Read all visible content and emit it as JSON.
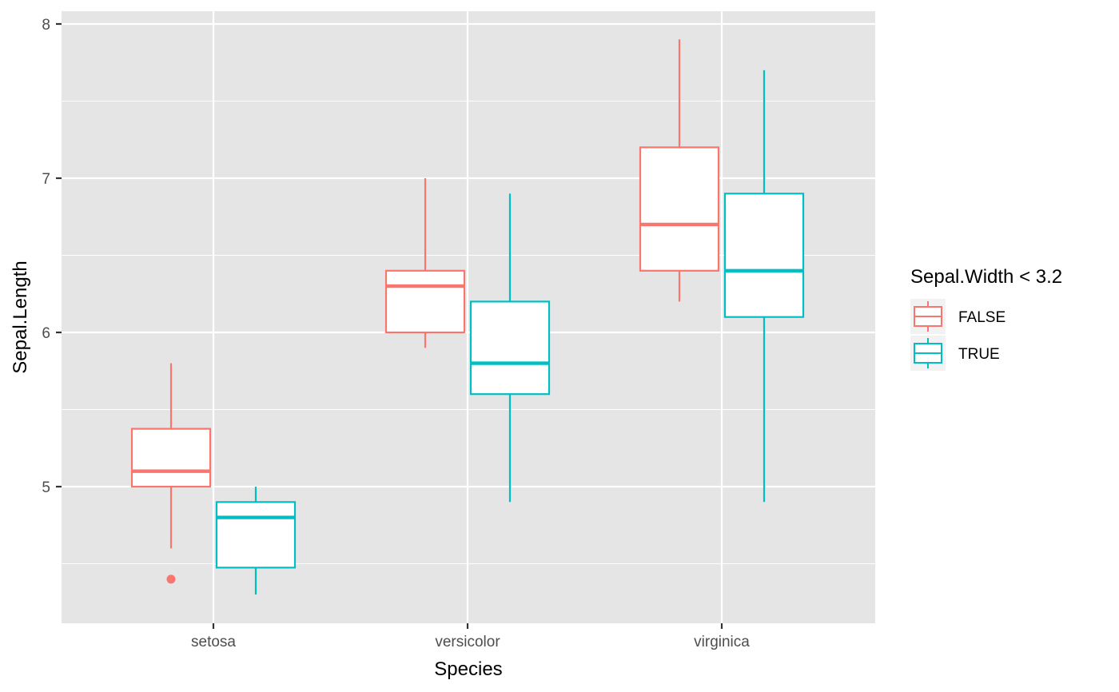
{
  "chart_data": {
    "type": "boxplot",
    "xlabel": "Species",
    "ylabel": "Sepal.Length",
    "categories": [
      "setosa",
      "versicolor",
      "virginica"
    ],
    "ylim": [
      4.2,
      8.08
    ],
    "yticks": [
      5,
      6,
      7,
      8
    ],
    "grid": true,
    "legend": {
      "title": "Sepal.Width < 3.2",
      "placement": "right"
    },
    "colors": {
      "panel_background": "#e5e5e5",
      "grid": "#ffffff",
      "fill": "#ffffff",
      "axis_text": "#4d4d4d",
      "axis_title": "#000000"
    },
    "series": [
      {
        "name": "FALSE",
        "color": "#f8766d",
        "boxes": [
          {
            "category": "setosa",
            "whisker_low": 4.6,
            "q1": 5.0,
            "median": 5.1,
            "q3": 5.375,
            "whisker_high": 5.8,
            "outliers": [
              4.4
            ]
          },
          {
            "category": "versicolor",
            "whisker_low": 5.9,
            "q1": 6.0,
            "median": 6.3,
            "q3": 6.4,
            "whisker_high": 7.0,
            "outliers": []
          },
          {
            "category": "virginica",
            "whisker_low": 6.2,
            "q1": 6.4,
            "median": 6.7,
            "q3": 7.2,
            "whisker_high": 7.9,
            "outliers": []
          }
        ]
      },
      {
        "name": "TRUE",
        "color": "#00bfc4",
        "boxes": [
          {
            "category": "setosa",
            "whisker_low": 4.3,
            "q1": 4.475,
            "median": 4.8,
            "q3": 4.9,
            "whisker_high": 5.0,
            "outliers": []
          },
          {
            "category": "versicolor",
            "whisker_low": 4.9,
            "q1": 5.6,
            "median": 5.8,
            "q3": 6.2,
            "whisker_high": 6.9,
            "outliers": []
          },
          {
            "category": "virginica",
            "whisker_low": 4.9,
            "q1": 6.1,
            "median": 6.4,
            "q3": 6.9,
            "whisker_high": 7.7,
            "outliers": []
          }
        ]
      }
    ]
  }
}
